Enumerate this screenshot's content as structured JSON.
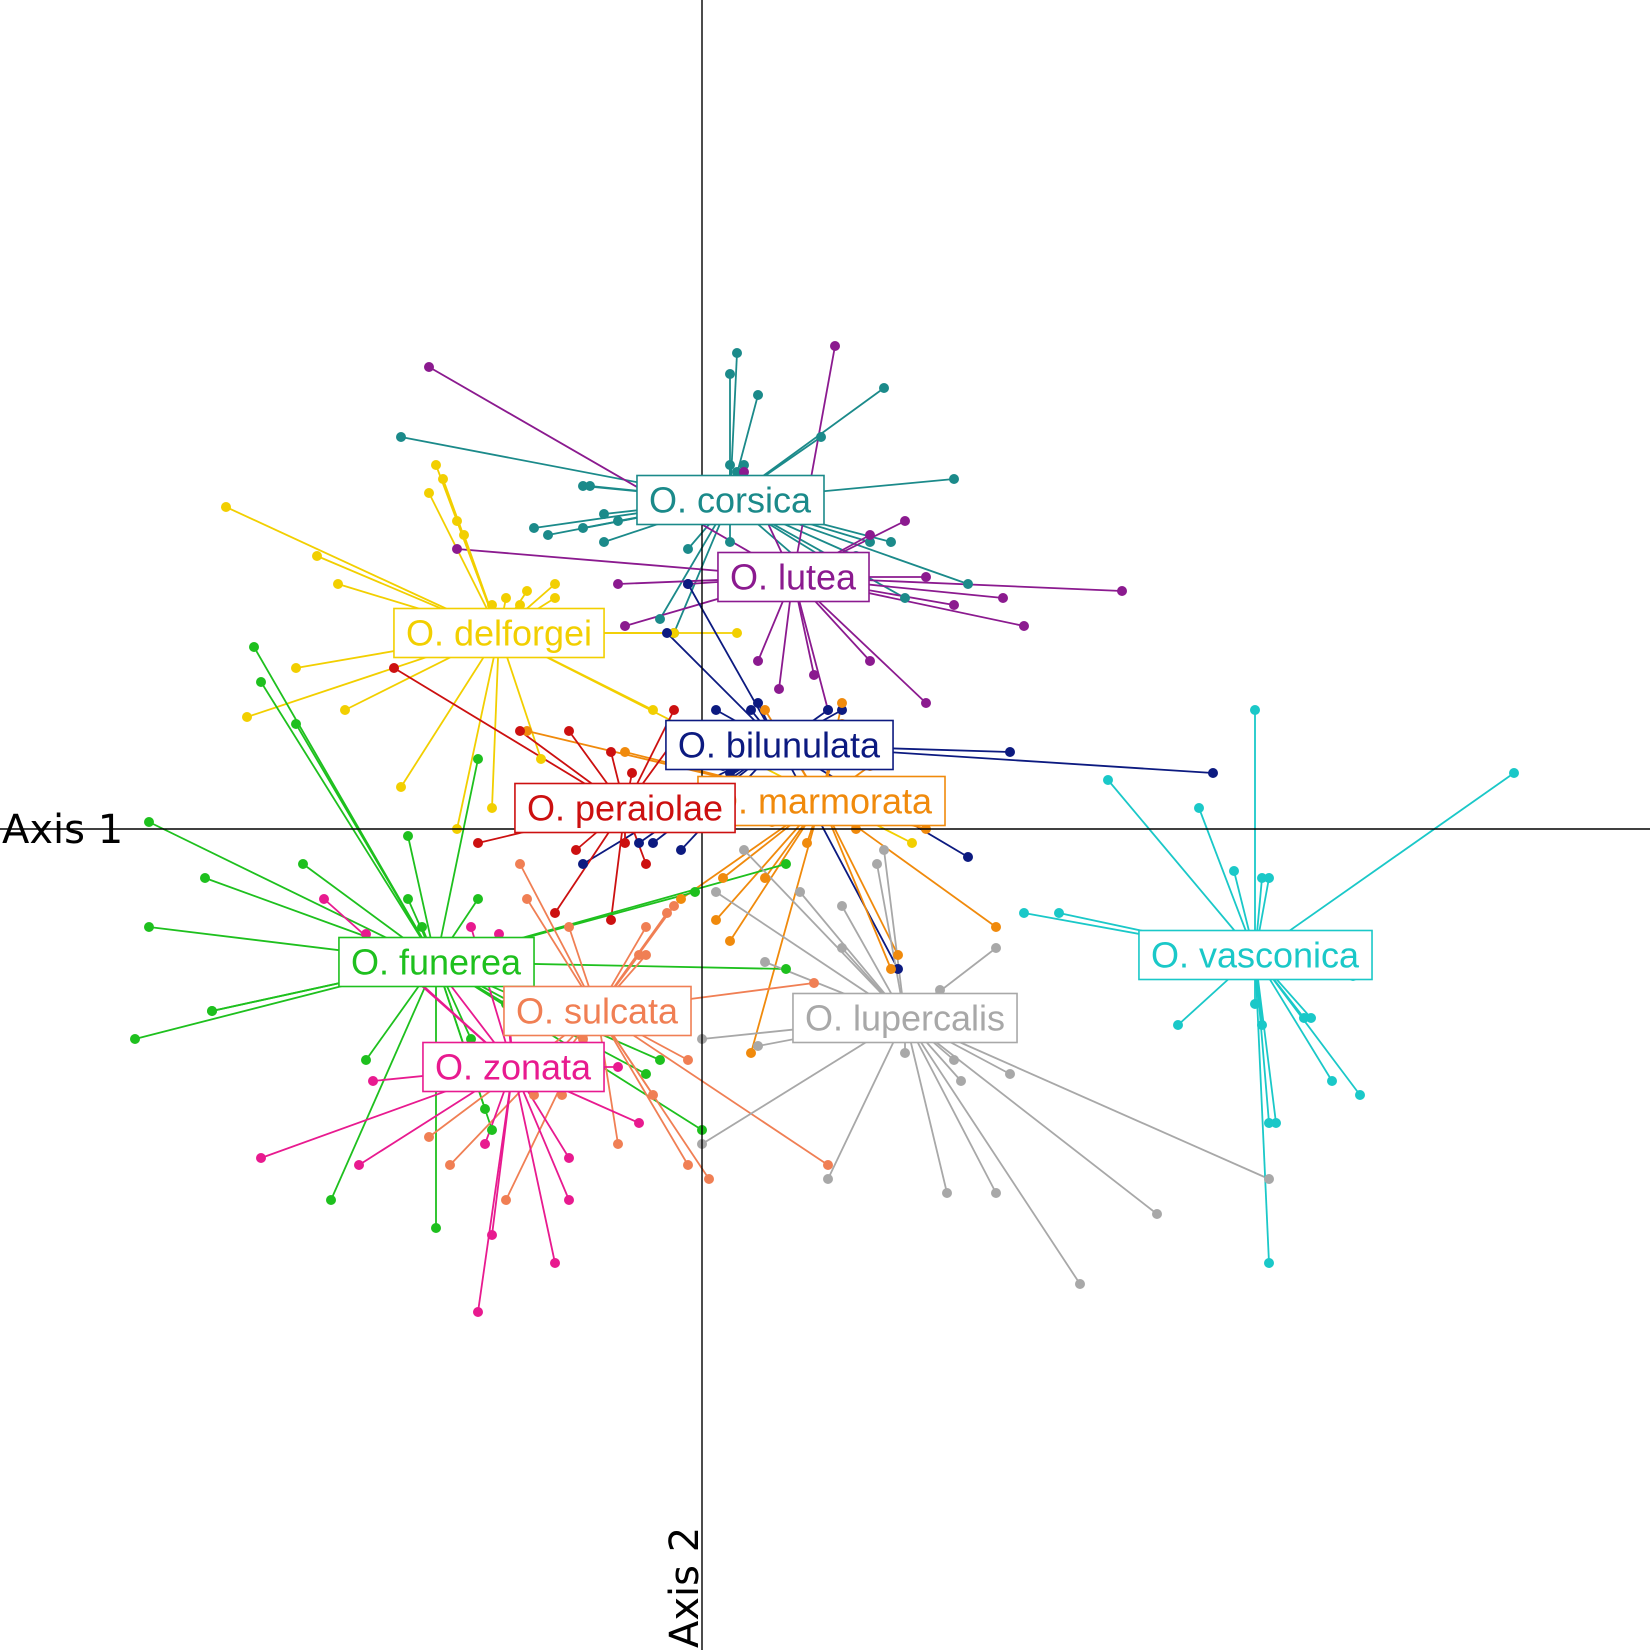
{
  "chart_data": {
    "type": "scatter",
    "subtype": "centroid-star plot (spider)",
    "xlabel": "Axis 1",
    "ylabel": "Axis 2",
    "xlim": [
      -1.0,
      1.35
    ],
    "ylim": [
      -1.2,
      1.18
    ],
    "grid": false,
    "legend": "labels at group centroids",
    "series": [
      {
        "name": "O. corsica",
        "color": "#1b8a8a",
        "centroid": [
          0.04,
          0.47
        ],
        "points": [
          [
            0.05,
            0.68
          ],
          [
            0.04,
            0.65
          ],
          [
            0.08,
            0.62
          ],
          [
            0.26,
            0.63
          ],
          [
            0.17,
            0.56
          ],
          [
            0.04,
            0.52
          ],
          [
            0.05,
            0.51
          ],
          [
            0.06,
            0.52
          ],
          [
            -0.43,
            0.56
          ],
          [
            -0.17,
            0.49
          ],
          [
            -0.16,
            0.49
          ],
          [
            0.36,
            0.5
          ],
          [
            -0.14,
            0.45
          ],
          [
            -0.12,
            0.44
          ],
          [
            -0.17,
            0.43
          ],
          [
            -0.24,
            0.43
          ],
          [
            -0.22,
            0.42
          ],
          [
            -0.14,
            0.41
          ],
          [
            -0.02,
            0.4
          ],
          [
            0.04,
            0.41
          ],
          [
            0.17,
            0.39
          ],
          [
            0.24,
            0.41
          ],
          [
            0.27,
            0.41
          ],
          [
            0.22,
            0.39
          ],
          [
            0.38,
            0.35
          ],
          [
            0.29,
            0.33
          ],
          [
            0.19,
            0.34
          ],
          [
            -0.06,
            0.3
          ],
          [
            -0.04,
            0.28
          ]
        ]
      },
      {
        "name": "O. lutea",
        "color": "#8b1a8f",
        "centroid": [
          0.13,
          0.36
        ],
        "points": [
          [
            0.19,
            0.69
          ],
          [
            -0.39,
            0.66
          ],
          [
            0.06,
            0.51
          ],
          [
            -0.35,
            0.4
          ],
          [
            0.24,
            0.42
          ],
          [
            0.29,
            0.44
          ],
          [
            0.32,
            0.36
          ],
          [
            0.43,
            0.33
          ],
          [
            0.36,
            0.32
          ],
          [
            0.6,
            0.34
          ],
          [
            0.46,
            0.29
          ],
          [
            -0.12,
            0.35
          ],
          [
            -0.02,
            0.35
          ],
          [
            -0.11,
            0.29
          ],
          [
            0.24,
            0.24
          ],
          [
            0.16,
            0.22
          ],
          [
            0.32,
            0.18
          ],
          [
            0.18,
            0.17
          ],
          [
            0.11,
            0.2
          ],
          [
            0.08,
            0.24
          ]
        ]
      },
      {
        "name": "O. delforgei",
        "color": "#f2cf00",
        "centroid": [
          -0.29,
          0.28
        ],
        "points": [
          [
            -0.38,
            0.52
          ],
          [
            -0.37,
            0.5
          ],
          [
            -0.39,
            0.48
          ],
          [
            -0.68,
            0.46
          ],
          [
            -0.35,
            0.44
          ],
          [
            -0.34,
            0.42
          ],
          [
            -0.55,
            0.39
          ],
          [
            -0.52,
            0.35
          ],
          [
            -0.21,
            0.35
          ],
          [
            -0.21,
            0.33
          ],
          [
            -0.25,
            0.34
          ],
          [
            -0.28,
            0.33
          ],
          [
            -0.3,
            0.32
          ],
          [
            -0.26,
            0.32
          ],
          [
            -0.42,
            0.3
          ],
          [
            -0.16,
            0.28
          ],
          [
            -0.04,
            0.28
          ],
          [
            0.05,
            0.28
          ],
          [
            -0.58,
            0.23
          ],
          [
            -0.51,
            0.17
          ],
          [
            -0.65,
            0.16
          ],
          [
            -0.07,
            0.17
          ],
          [
            -0.23,
            0.1
          ],
          [
            -0.3,
            0.03
          ],
          [
            -0.43,
            0.06
          ],
          [
            -0.35,
            0.0
          ],
          [
            0.3,
            -0.02
          ]
        ]
      },
      {
        "name": "O. bilunulata",
        "color": "#0c1a80",
        "centroid": [
          0.11,
          0.12
        ],
        "points": [
          [
            -0.02,
            0.35
          ],
          [
            -0.05,
            0.28
          ],
          [
            0.02,
            0.17
          ],
          [
            0.08,
            0.18
          ],
          [
            0.07,
            0.17
          ],
          [
            0.18,
            0.17
          ],
          [
            0.2,
            0.17
          ],
          [
            0.44,
            0.11
          ],
          [
            0.73,
            0.08
          ],
          [
            0.04,
            0.08
          ],
          [
            0.03,
            0.09
          ],
          [
            -0.03,
            0.05
          ],
          [
            -0.05,
            0.02
          ],
          [
            -0.07,
            -0.02
          ],
          [
            -0.09,
            -0.02
          ],
          [
            -0.17,
            -0.05
          ],
          [
            -0.03,
            -0.03
          ],
          [
            0.38,
            -0.04
          ],
          [
            0.28,
            -0.2
          ]
        ]
      },
      {
        "name": "O. marmorata",
        "color": "#f08a0c",
        "centroid": [
          0.17,
          0.04
        ],
        "points": [
          [
            0.2,
            0.18
          ],
          [
            0.2,
            0.15
          ],
          [
            0.09,
            0.17
          ],
          [
            0.11,
            0.14
          ],
          [
            -0.25,
            0.14
          ],
          [
            -0.11,
            0.11
          ],
          [
            0.24,
            0.09
          ],
          [
            0.3,
            0.06
          ],
          [
            0.32,
            0.0
          ],
          [
            0.22,
            0.0
          ],
          [
            0.1,
            0.01
          ],
          [
            0.15,
            -0.02
          ],
          [
            0.42,
            -0.14
          ],
          [
            0.03,
            -0.07
          ],
          [
            0.09,
            -0.07
          ],
          [
            0.02,
            -0.13
          ],
          [
            0.04,
            -0.16
          ],
          [
            -0.03,
            -0.1
          ],
          [
            0.07,
            -0.32
          ],
          [
            0.27,
            -0.2
          ],
          [
            0.28,
            -0.18
          ]
        ]
      },
      {
        "name": "O. peraiolae",
        "color": "#cc1010",
        "centroid": [
          -0.11,
          0.03
        ],
        "points": [
          [
            -0.44,
            0.23
          ],
          [
            -0.04,
            0.17
          ],
          [
            -0.03,
            0.14
          ],
          [
            -0.26,
            0.14
          ],
          [
            -0.19,
            0.14
          ],
          [
            -0.13,
            0.11
          ],
          [
            -0.1,
            0.08
          ],
          [
            -0.14,
            0.05
          ],
          [
            -0.06,
            0.02
          ],
          [
            -0.11,
            -0.02
          ],
          [
            -0.32,
            -0.02
          ],
          [
            -0.18,
            -0.03
          ],
          [
            -0.08,
            -0.05
          ],
          [
            -0.13,
            -0.13
          ],
          [
            -0.21,
            -0.12
          ]
        ]
      },
      {
        "name": "O. funerea",
        "color": "#1ec01e",
        "centroid": [
          -0.38,
          -0.19
        ],
        "points": [
          [
            -0.64,
            0.26
          ],
          [
            -0.63,
            0.21
          ],
          [
            -0.58,
            0.15
          ],
          [
            -0.32,
            0.1
          ],
          [
            -0.79,
            0.01
          ],
          [
            -0.42,
            -0.01
          ],
          [
            -0.71,
            -0.07
          ],
          [
            -0.57,
            -0.05
          ],
          [
            -0.42,
            -0.1
          ],
          [
            -0.32,
            -0.1
          ],
          [
            -0.79,
            -0.14
          ],
          [
            -0.4,
            -0.14
          ],
          [
            -0.7,
            -0.26
          ],
          [
            -0.81,
            -0.3
          ],
          [
            -0.7,
            -0.26
          ],
          [
            0.12,
            -0.2
          ],
          [
            0.12,
            -0.05
          ],
          [
            -0.01,
            -0.09
          ],
          [
            -0.27,
            -0.18
          ],
          [
            -0.48,
            -0.33
          ],
          [
            -0.33,
            -0.3
          ],
          [
            -0.28,
            -0.25
          ],
          [
            -0.08,
            -0.35
          ],
          [
            -0.06,
            -0.33
          ],
          [
            -0.31,
            -0.4
          ],
          [
            -0.3,
            -0.43
          ],
          [
            0.0,
            -0.43
          ],
          [
            -0.53,
            -0.53
          ],
          [
            -0.38,
            -0.57
          ]
        ]
      },
      {
        "name": "O. sulcata",
        "color": "#f07f54",
        "centroid": [
          -0.15,
          -0.26
        ],
        "points": [
          [
            -0.26,
            -0.05
          ],
          [
            -0.25,
            -0.1
          ],
          [
            -0.19,
            -0.14
          ],
          [
            -0.04,
            -0.11
          ],
          [
            -0.05,
            -0.12
          ],
          [
            -0.08,
            -0.14
          ],
          [
            -0.09,
            -0.18
          ],
          [
            -0.08,
            -0.18
          ],
          [
            0.16,
            -0.22
          ],
          [
            -0.17,
            -0.3
          ],
          [
            -0.02,
            -0.33
          ],
          [
            -0.2,
            -0.38
          ],
          [
            -0.07,
            -0.38
          ],
          [
            -0.39,
            -0.44
          ],
          [
            -0.36,
            -0.48
          ],
          [
            -0.02,
            -0.48
          ],
          [
            -0.28,
            -0.53
          ],
          [
            0.01,
            -0.5
          ],
          [
            -0.12,
            -0.45
          ],
          [
            0.18,
            -0.48
          ],
          [
            -0.24,
            -0.38
          ]
        ]
      },
      {
        "name": "O. zonata",
        "color": "#e81a8f",
        "centroid": [
          -0.27,
          -0.34
        ],
        "points": [
          [
            -0.54,
            -0.1
          ],
          [
            -0.48,
            -0.15
          ],
          [
            -0.33,
            -0.14
          ],
          [
            -0.29,
            -0.15
          ],
          [
            -0.4,
            -0.17
          ],
          [
            -0.28,
            -0.21
          ],
          [
            -0.47,
            -0.36
          ],
          [
            -0.38,
            -0.34
          ],
          [
            -0.12,
            -0.34
          ],
          [
            -0.09,
            -0.42
          ],
          [
            -0.63,
            -0.47
          ],
          [
            -0.49,
            -0.48
          ],
          [
            -0.31,
            -0.45
          ],
          [
            -0.19,
            -0.47
          ],
          [
            -0.19,
            -0.53
          ],
          [
            -0.3,
            -0.58
          ],
          [
            -0.21,
            -0.62
          ],
          [
            -0.32,
            -0.69
          ]
        ]
      },
      {
        "name": "O. lupercalis",
        "color": "#a8a8a8",
        "centroid": [
          0.29,
          -0.27
        ],
        "points": [
          [
            0.06,
            -0.03
          ],
          [
            0.02,
            -0.09
          ],
          [
            0.14,
            -0.09
          ],
          [
            0.2,
            -0.11
          ],
          [
            0.25,
            -0.05
          ],
          [
            0.26,
            -0.03
          ],
          [
            0.2,
            -0.17
          ],
          [
            0.42,
            -0.17
          ],
          [
            0.09,
            -0.19
          ],
          [
            0.34,
            -0.23
          ],
          [
            0.08,
            -0.31
          ],
          [
            0.29,
            -0.32
          ],
          [
            0.0,
            -0.3
          ],
          [
            0.36,
            -0.33
          ],
          [
            0.37,
            -0.36
          ],
          [
            0.44,
            -0.35
          ],
          [
            0.0,
            -0.45
          ],
          [
            0.18,
            -0.5
          ],
          [
            0.42,
            -0.52
          ],
          [
            0.65,
            -0.55
          ],
          [
            0.54,
            -0.65
          ],
          [
            0.81,
            -0.5
          ],
          [
            0.35,
            -0.52
          ]
        ]
      },
      {
        "name": "O. vasconica",
        "color": "#1ac8c8",
        "centroid": [
          0.79,
          -0.18
        ],
        "points": [
          [
            0.79,
            0.17
          ],
          [
            1.16,
            0.08
          ],
          [
            0.58,
            0.07
          ],
          [
            0.71,
            0.03
          ],
          [
            0.76,
            -0.06
          ],
          [
            0.8,
            -0.07
          ],
          [
            0.81,
            -0.07
          ],
          [
            0.46,
            -0.12
          ],
          [
            0.51,
            -0.12
          ],
          [
            0.93,
            -0.21
          ],
          [
            0.68,
            -0.28
          ],
          [
            0.86,
            -0.27
          ],
          [
            0.87,
            -0.27
          ],
          [
            0.79,
            -0.25
          ],
          [
            0.8,
            -0.28
          ],
          [
            0.9,
            -0.36
          ],
          [
            0.81,
            -0.42
          ],
          [
            0.82,
            -0.42
          ],
          [
            0.94,
            -0.38
          ],
          [
            0.81,
            -0.62
          ]
        ]
      }
    ]
  }
}
